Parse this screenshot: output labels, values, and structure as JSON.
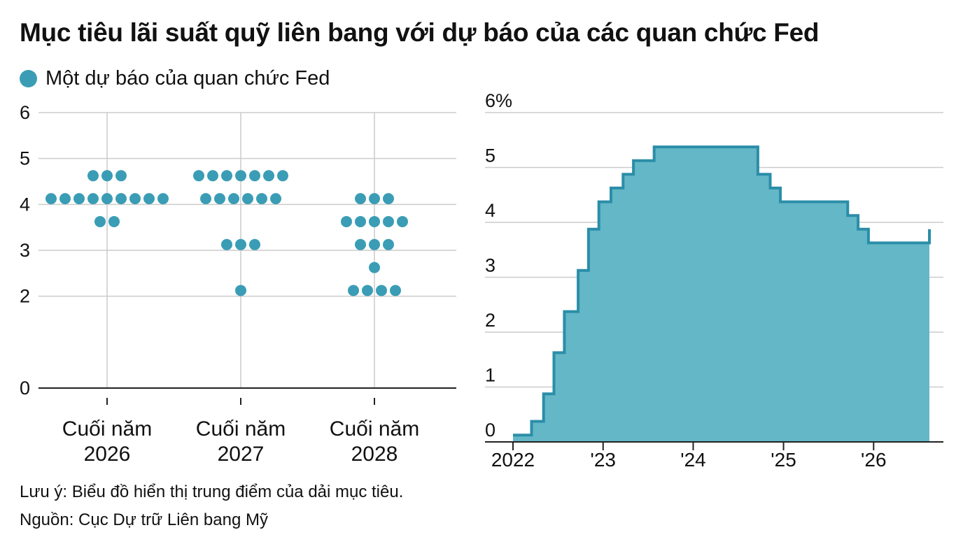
{
  "title": "Mục tiêu lãi suất quỹ liên bang với dự báo của các quan chức Fed",
  "legend": {
    "label": "Một dự báo của quan chức Fed",
    "color": "#3a9db5"
  },
  "notes": {
    "note": "Lưu ý: Biểu đồ hiển thị trung điểm của dải mục tiêu.",
    "source": "Nguồn: Cục Dự trữ Liên bang Mỹ"
  },
  "colors": {
    "dot": "#3a9db5",
    "area_fill": "#64b7c7",
    "area_line": "#2b8ea8",
    "grid": "#cccccc",
    "axis": "#222222"
  },
  "chart_data": [
    {
      "type": "scatter",
      "categories": [
        {
          "line1": "Cuối năm",
          "line2": "2026"
        },
        {
          "line1": "Cuối năm",
          "line2": "2027"
        },
        {
          "line1": "Cuối năm",
          "line2": "2028"
        }
      ],
      "y_ticks": [
        "0",
        "2",
        "3",
        "4",
        "5",
        "6"
      ],
      "ylim": [
        0,
        6
      ],
      "grid": true,
      "dots_per_category": [
        [
          {
            "y": 4.625,
            "count": 3
          },
          {
            "y": 4.125,
            "count": 9
          },
          {
            "y": 3.625,
            "count": 2
          }
        ],
        [
          {
            "y": 4.625,
            "count": 7
          },
          {
            "y": 4.125,
            "count": 6
          },
          {
            "y": 3.125,
            "count": 3
          },
          {
            "y": 2.125,
            "count": 1
          }
        ],
        [
          {
            "y": 4.125,
            "count": 3
          },
          {
            "y": 3.625,
            "count": 5
          },
          {
            "y": 3.125,
            "count": 3
          },
          {
            "y": 2.625,
            "count": 1
          },
          {
            "y": 2.125,
            "count": 4
          }
        ]
      ]
    },
    {
      "type": "area",
      "y_ticks": [
        "0",
        "1",
        "2",
        "3",
        "4",
        "5",
        "6%"
      ],
      "ylim": [
        0,
        6
      ],
      "x_ticks": [
        {
          "label": "2022",
          "x": "2022-01-01"
        },
        {
          "label": "'23",
          "x": "2023-01-01"
        },
        {
          "label": "'24",
          "x": "2024-01-01"
        },
        {
          "label": "'25",
          "x": "2025-01-01"
        },
        {
          "label": "'26",
          "x": "2026-01-01"
        }
      ],
      "xlim": [
        "2022-01-01",
        "2026-08-15"
      ],
      "grid": true,
      "step_points": [
        {
          "x": "2022-01-01",
          "y": 0.125
        },
        {
          "x": "2022-03-17",
          "y": 0.375
        },
        {
          "x": "2022-05-05",
          "y": 0.875
        },
        {
          "x": "2022-06-16",
          "y": 1.625
        },
        {
          "x": "2022-07-28",
          "y": 2.375
        },
        {
          "x": "2022-09-22",
          "y": 3.125
        },
        {
          "x": "2022-11-03",
          "y": 3.875
        },
        {
          "x": "2022-12-15",
          "y": 4.375
        },
        {
          "x": "2023-02-02",
          "y": 4.625
        },
        {
          "x": "2023-03-23",
          "y": 4.875
        },
        {
          "x": "2023-05-04",
          "y": 5.125
        },
        {
          "x": "2023-07-27",
          "y": 5.375
        },
        {
          "x": "2024-09-19",
          "y": 4.875
        },
        {
          "x": "2024-11-08",
          "y": 4.625
        },
        {
          "x": "2024-12-19",
          "y": 4.375
        },
        {
          "x": "2025-09-18",
          "y": 4.125
        },
        {
          "x": "2025-10-30",
          "y": 3.875
        },
        {
          "x": "2025-12-11",
          "y": 3.625
        },
        {
          "x": "2026-08-10",
          "y": 3.625
        },
        {
          "x": "2026-08-15",
          "y": 3.875
        }
      ]
    }
  ]
}
